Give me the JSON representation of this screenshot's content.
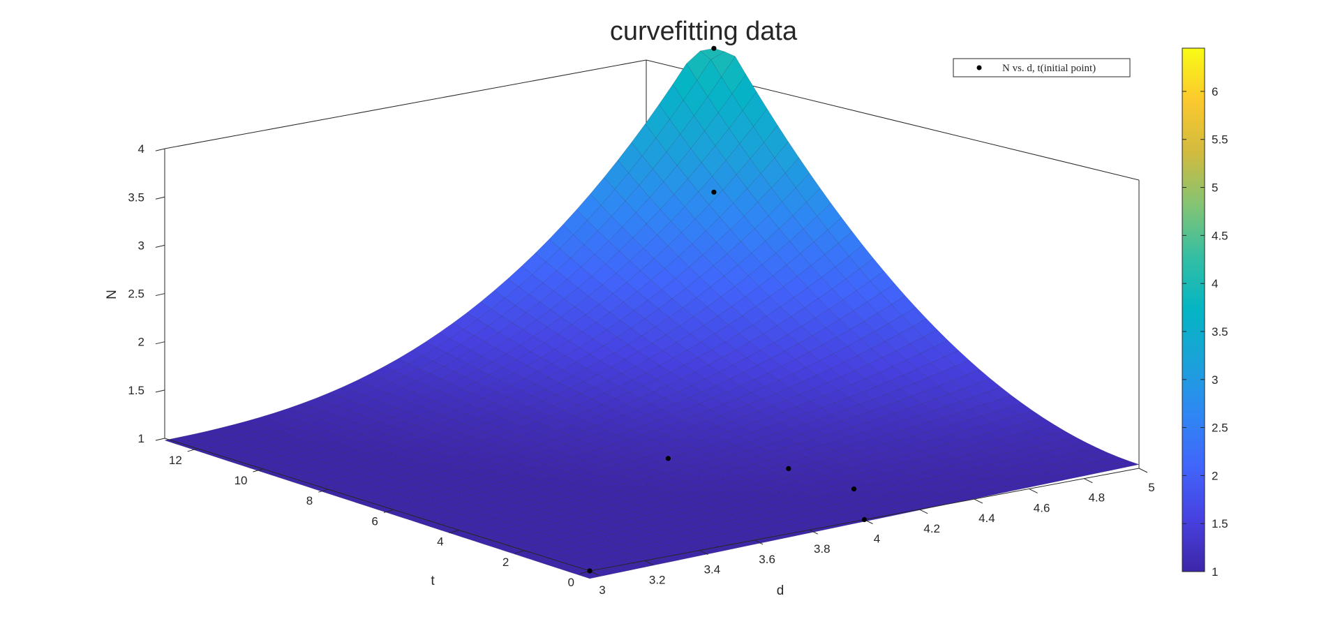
{
  "chart_data": {
    "type": "surface",
    "title": "curvefitting data",
    "xlabel": "d",
    "ylabel": "t",
    "zlabel": "N",
    "xlim": [
      3,
      5
    ],
    "ylim": [
      0,
      13
    ],
    "zlim": [
      1,
      4
    ],
    "x_ticks": [
      "3",
      "3.2",
      "3.4",
      "3.6",
      "3.8",
      "4",
      "4.2",
      "4.4",
      "4.6",
      "4.8",
      "5"
    ],
    "y_ticks": [
      "0",
      "2",
      "4",
      "6",
      "8",
      "10",
      "12"
    ],
    "z_ticks": [
      "1",
      "1.5",
      "2",
      "2.5",
      "3",
      "3.5",
      "4"
    ],
    "legend": {
      "label": "N vs. d, t(initial point)",
      "position": "top-right"
    },
    "colorbar": {
      "ticks": [
        "1",
        "1.5",
        "2",
        "2.5",
        "3",
        "3.5",
        "4",
        "4.5",
        "5",
        "5.5",
        "6"
      ],
      "range": [
        1,
        6.45
      ],
      "colormap": "parula"
    },
    "grid": false,
    "points": [
      {
        "d": 3.0,
        "t": 0.0,
        "N": 1.0
      },
      {
        "d": 4.0,
        "t": 0.0,
        "N": 1.0
      },
      {
        "d": 4.2,
        "t": 2.0,
        "N": 1.0
      },
      {
        "d": 4.2,
        "t": 4.0,
        "N": 1.0
      },
      {
        "d": 4.0,
        "t": 6.0,
        "N": 1.0
      },
      {
        "d": 5.0,
        "t": 13.0,
        "N": 2.5
      },
      {
        "d": 5.0,
        "t": 13.0,
        "N": 4.0
      }
    ]
  }
}
